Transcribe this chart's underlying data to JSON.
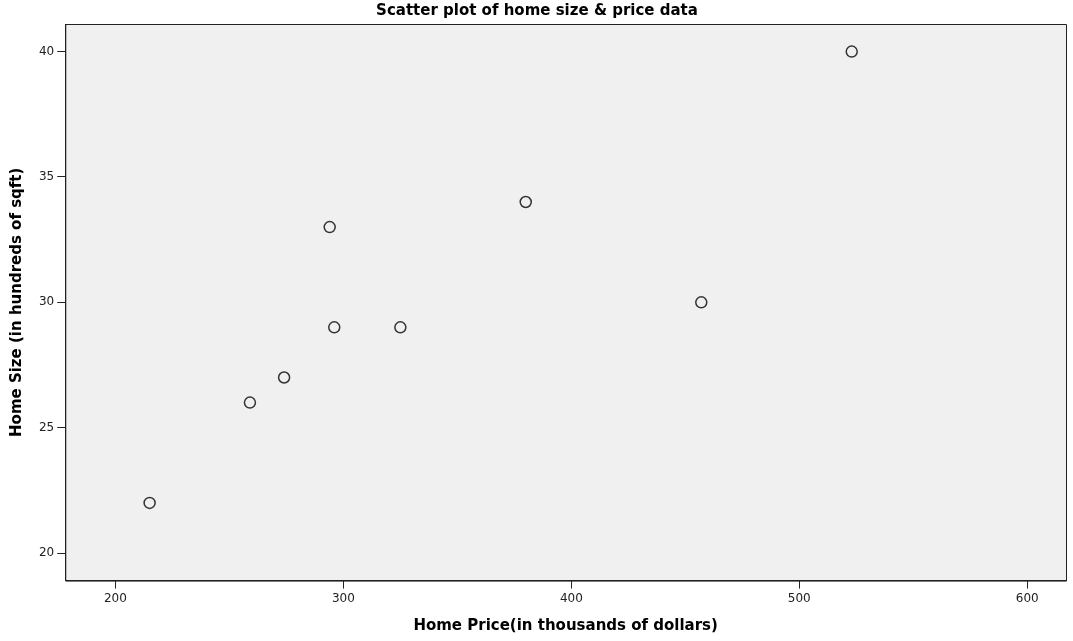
{
  "chart_data": {
    "type": "scatter",
    "title": "Scatter plot of home size & price data",
    "xlabel": "Home Price(in thousands of dollars)",
    "ylabel": "Home Size (in hundreds of sqft)",
    "x": [
      215,
      259,
      274,
      294,
      296,
      325,
      380,
      457,
      523
    ],
    "values": [
      22,
      26,
      27,
      33,
      29,
      29,
      34,
      30,
      40
    ],
    "color": "#333333",
    "marker": "circle",
    "xlim": [
      178,
      617
    ],
    "xticks": [
      200,
      300,
      400,
      500,
      600
    ],
    "ylim": [
      18.9,
      41.1
    ],
    "yticks": [
      20,
      25,
      30,
      35,
      40
    ],
    "grid": false,
    "legend": false
  }
}
